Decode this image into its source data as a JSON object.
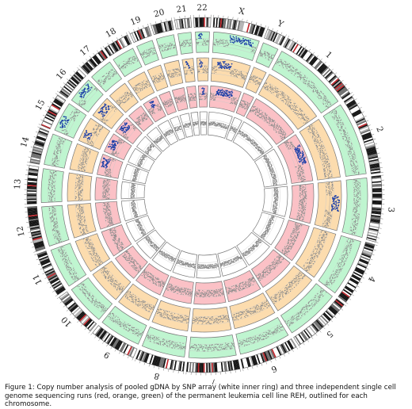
{
  "chart_data": {
    "type": "circos",
    "chromosomes": [
      "1",
      "2",
      "3",
      "4",
      "5",
      "6",
      "7",
      "8",
      "9",
      "10",
      "11",
      "12",
      "13",
      "14",
      "15",
      "16",
      "17",
      "18",
      "19",
      "20",
      "21",
      "22",
      "X",
      "Y"
    ],
    "rings": [
      {
        "ring": "outer",
        "color": "#bff5d0",
        "kind": "single-cell sequencing"
      },
      {
        "ring": "middle-outer",
        "color": "#fcdcae",
        "kind": "single-cell sequencing"
      },
      {
        "ring": "middle-inner",
        "color": "#fbc1c6",
        "kind": "single-cell sequencing"
      },
      {
        "ring": "inner",
        "color": "#ffffff",
        "kind": "SNP array"
      }
    ],
    "highlight_color": "#1c3fa8",
    "point_color": "#8c8c8c"
  },
  "caption": "Figure 1: Copy number analysis of pooled gDNA by SNP array (white inner ring) and three independent single cell genome sequencing runs (red, orange, green) of the permanent leukemia cell line REH,  outlined for each chromosome."
}
